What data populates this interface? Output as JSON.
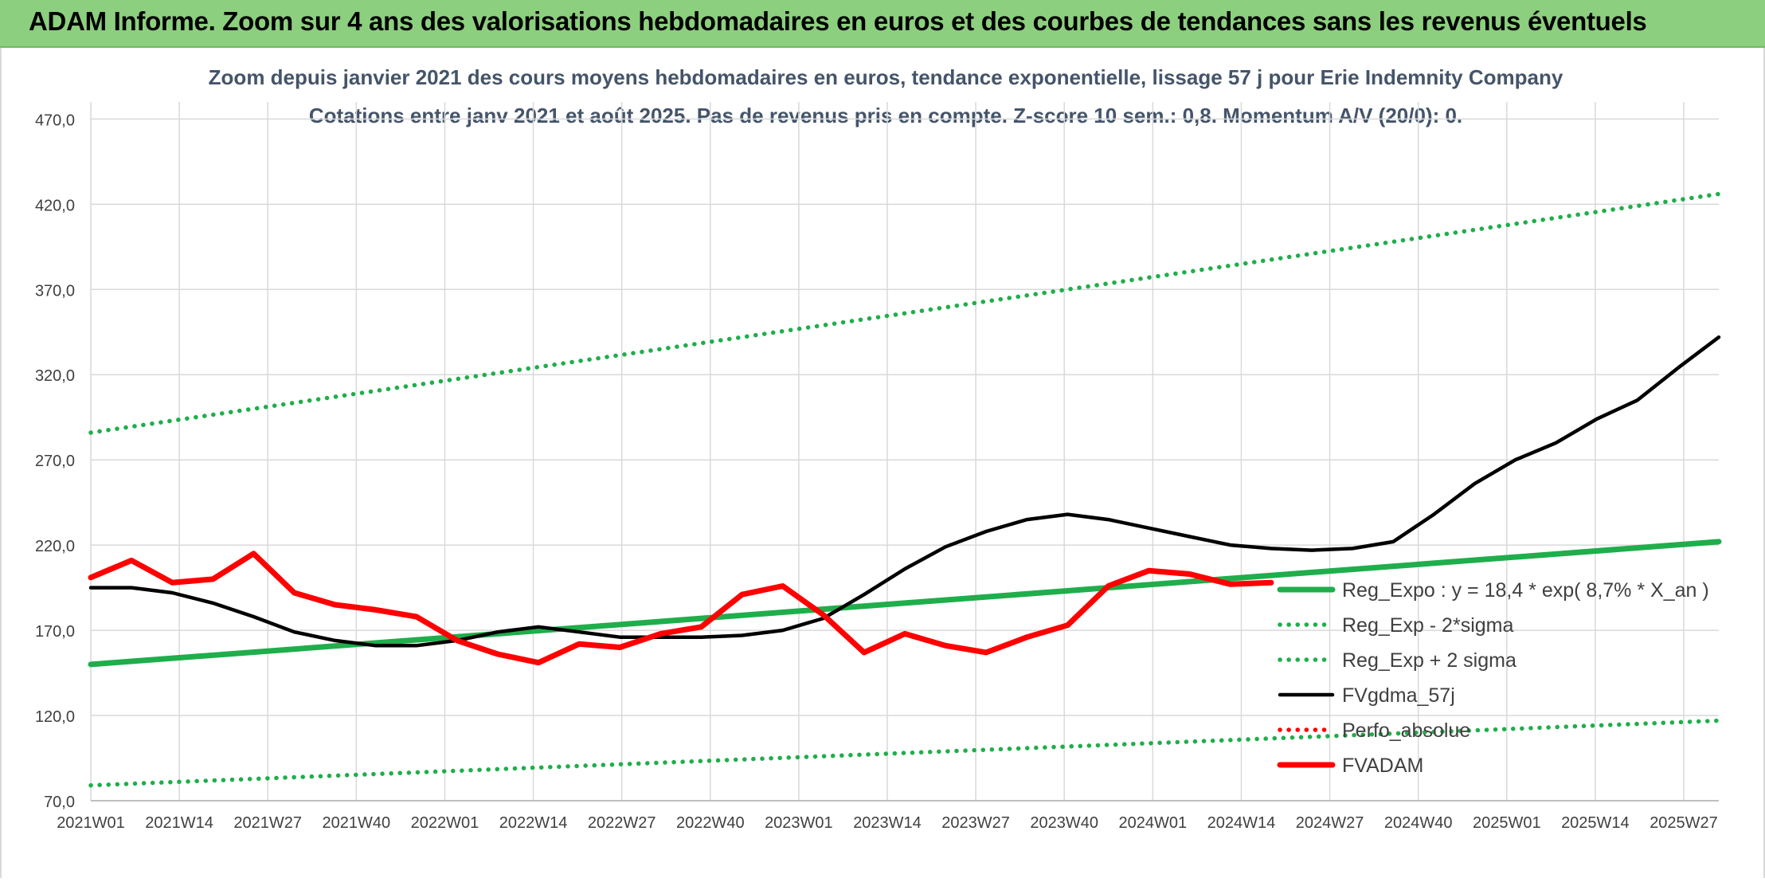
{
  "header": {
    "title": "ADAM Informe. Zoom sur 4 ans des valorisations hebdomadaires en euros et des courbes de tendances sans les revenus éventuels"
  },
  "chart_data": {
    "type": "line",
    "title": "Zoom depuis janvier 2021 des cours moyens hebdomadaires en euros, tendance exponentielle, lissage 57 j pour Erie Indemnity Company",
    "subtitle": "Cotations entre janv 2021 et août 2025. Pas de revenus pris en compte. Z-score 10 sem.: 0,8. Momentum A/V (20/0): 0.",
    "xlabel": "",
    "ylabel": "",
    "ylim": [
      70,
      480
    ],
    "yticks": [
      "70,0",
      "120,0",
      "170,0",
      "220,0",
      "270,0",
      "320,0",
      "370,0",
      "420,0",
      "470,0"
    ],
    "ytick_values": [
      70,
      120,
      170,
      220,
      270,
      320,
      370,
      420,
      470
    ],
    "xticks": [
      "2021W01",
      "2021W14",
      "2021W27",
      "2021W40",
      "2022W01",
      "2022W14",
      "2022W27",
      "2022W40",
      "2023W01",
      "2023W14",
      "2023W27",
      "2023W40",
      "2024W01",
      "2024W14",
      "2024W27",
      "2024W40",
      "2025W01",
      "2025W14",
      "2025W27"
    ],
    "grid": true,
    "legend_position": "bottom-right",
    "series": [
      {
        "name": "Reg_Expo : y = 18,4 * exp( 8,7% *  X_an )",
        "style": "solid-thick",
        "color": "#1fae4b",
        "points": [
          [
            0,
            150
          ],
          [
            240,
            222
          ]
        ]
      },
      {
        "name": "Reg_Exp - 2*sigma",
        "style": "dotted",
        "color": "#1fae4b",
        "points": [
          [
            0,
            79
          ],
          [
            240,
            117
          ]
        ]
      },
      {
        "name": "Reg_Exp + 2 sigma",
        "style": "dotted",
        "color": "#1fae4b",
        "points": [
          [
            0,
            286
          ],
          [
            240,
            426
          ]
        ]
      },
      {
        "name": "FVgdma_57j",
        "style": "solid",
        "color": "#000000",
        "points": [
          [
            0,
            195
          ],
          [
            6,
            195
          ],
          [
            12,
            192
          ],
          [
            18,
            186
          ],
          [
            24,
            178
          ],
          [
            30,
            169
          ],
          [
            36,
            164
          ],
          [
            42,
            161
          ],
          [
            48,
            161
          ],
          [
            54,
            164
          ],
          [
            60,
            169
          ],
          [
            66,
            172
          ],
          [
            72,
            169
          ],
          [
            78,
            166
          ],
          [
            84,
            166
          ],
          [
            90,
            166
          ],
          [
            96,
            167
          ],
          [
            102,
            170
          ],
          [
            108,
            177
          ],
          [
            114,
            191
          ],
          [
            120,
            206
          ],
          [
            126,
            219
          ],
          [
            132,
            228
          ],
          [
            138,
            235
          ],
          [
            144,
            238
          ],
          [
            150,
            235
          ],
          [
            156,
            230
          ],
          [
            162,
            225
          ],
          [
            168,
            220
          ],
          [
            174,
            218
          ],
          [
            180,
            217
          ],
          [
            186,
            218
          ],
          [
            192,
            222
          ],
          [
            198,
            238
          ],
          [
            204,
            256
          ],
          [
            210,
            270
          ],
          [
            216,
            280
          ],
          [
            222,
            294
          ],
          [
            228,
            305
          ],
          [
            234,
            324
          ],
          [
            240,
            342
          ]
        ]
      },
      {
        "name": "Perfo_absolue",
        "style": "dotted",
        "color": "#ff0000",
        "points": []
      },
      {
        "name": "FVADAM",
        "style": "solid-thick",
        "color": "#ff0000",
        "points": [
          [
            0,
            201
          ],
          [
            6,
            211
          ],
          [
            12,
            198
          ],
          [
            18,
            200
          ],
          [
            24,
            215
          ],
          [
            30,
            192
          ],
          [
            36,
            185
          ],
          [
            42,
            182
          ],
          [
            48,
            178
          ],
          [
            54,
            164
          ],
          [
            60,
            156
          ],
          [
            66,
            151
          ],
          [
            72,
            162
          ],
          [
            78,
            160
          ],
          [
            84,
            168
          ],
          [
            90,
            172
          ],
          [
            96,
            191
          ],
          [
            102,
            196
          ],
          [
            108,
            179
          ],
          [
            114,
            157
          ],
          [
            120,
            168
          ],
          [
            126,
            161
          ],
          [
            132,
            157
          ],
          [
            138,
            166
          ],
          [
            144,
            173
          ],
          [
            150,
            196
          ],
          [
            156,
            205
          ],
          [
            162,
            203
          ],
          [
            168,
            197
          ],
          [
            174,
            198
          ]
        ]
      }
    ]
  }
}
